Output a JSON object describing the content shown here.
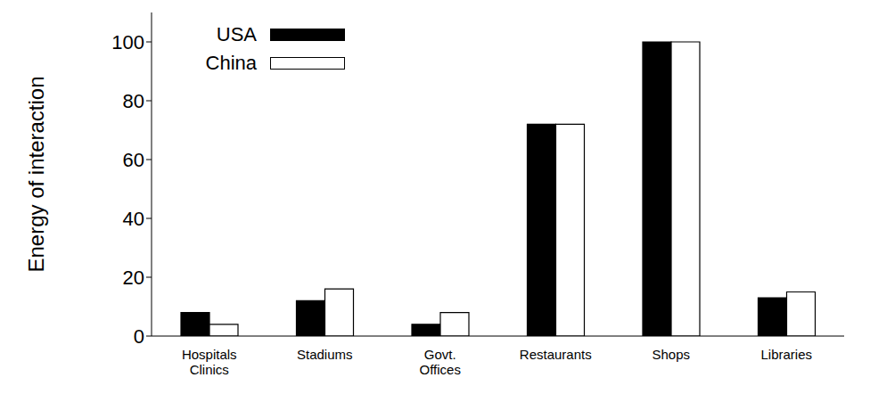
{
  "chart_data": {
    "type": "bar",
    "y_label": "Energy of interaction",
    "categories": [
      "Hospitals\nClinics",
      "Stadiums",
      "Govt.\nOffices",
      "Restaurants",
      "Shops",
      "Libraries"
    ],
    "series": [
      {
        "name": "USA",
        "color": "#000000",
        "values": [
          8,
          12,
          4,
          72,
          100,
          13
        ]
      },
      {
        "name": "China",
        "color": "#ffffff",
        "values": [
          4,
          16,
          8,
          72,
          100,
          15
        ]
      }
    ],
    "ylim": [
      0,
      110
    ],
    "yticks": [
      0,
      20,
      40,
      60,
      80,
      100
    ],
    "grid": false,
    "legend": "upper left"
  }
}
